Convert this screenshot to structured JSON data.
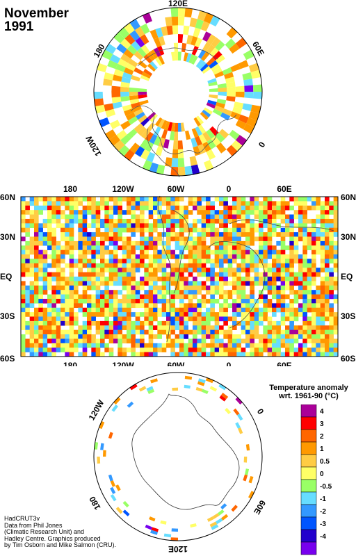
{
  "figure": {
    "month": "November",
    "year": "1991"
  },
  "polar_north": {
    "labels": {
      "e120": "120E",
      "w180": "180",
      "e60": "60E",
      "w120": "120W",
      "zero": "0"
    }
  },
  "global_map": {
    "lon_labels": [
      "180",
      "120W",
      "60W",
      "0",
      "60E"
    ],
    "lat_labels": [
      "60N",
      "30N",
      "EQ",
      "30S",
      "60S"
    ]
  },
  "polar_south": {
    "labels": {
      "w120": "120W",
      "zero": "0",
      "w180": "180",
      "e60": "60E",
      "e120": "120E"
    }
  },
  "legend": {
    "title_line1": "Temperature anomaly",
    "title_line2": "wrt. 1961-90  (°C)",
    "entries": [
      {
        "label": "4",
        "color": "#aa0099"
      },
      {
        "label": "3",
        "color": "#ff0000"
      },
      {
        "label": "2",
        "color": "#ff6600"
      },
      {
        "label": "1",
        "color": "#ff9900"
      },
      {
        "label": "0.5",
        "color": "#ffcc44"
      },
      {
        "label": "0",
        "color": "#ffff66"
      },
      {
        "label": "-0.5",
        "color": "#99ff66"
      },
      {
        "label": "-1",
        "color": "#66ddff"
      },
      {
        "label": "-2",
        "color": "#3399ff"
      },
      {
        "label": "-3",
        "color": "#0055ff"
      },
      {
        "label": "-4",
        "color": "#2200cc"
      },
      {
        "label": "",
        "color": "#7700ee"
      }
    ]
  },
  "credits": {
    "line1": "HadCRUT3v",
    "line2": "Data from Phil Jones",
    "line3": "(Climatic Research Unit) and",
    "line4": "Hadley Centre.  Graphics produced",
    "line5": "by Tim Osborn and Mike Salmon (CRU)."
  }
}
